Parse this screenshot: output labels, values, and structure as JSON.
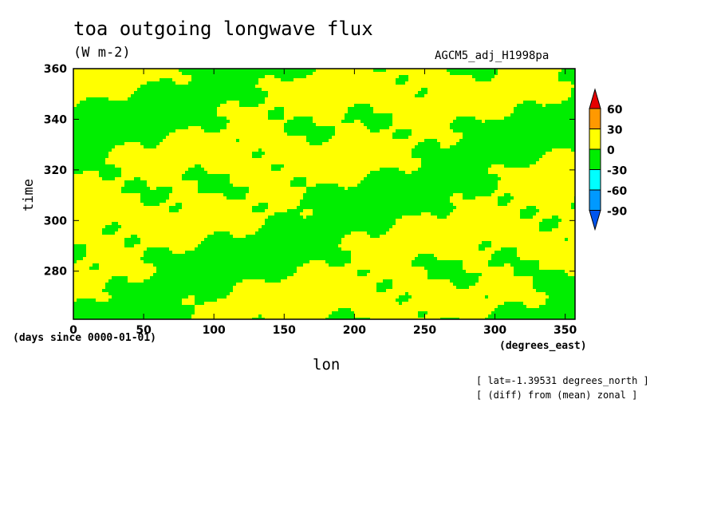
{
  "chart_data": {
    "type": "heatmap",
    "title": "toa outgoing longwave flux",
    "units": "(W m-2)",
    "model": "AGCM5_adj_H1998pa",
    "xlabel": "lon",
    "ylabel": "time",
    "x_units": "(degrees_east)",
    "y_units": "(days since 0000-01-01)",
    "xlim": [
      0,
      357
    ],
    "ylim": [
      261,
      360
    ],
    "x_ticks": [
      "0",
      "50",
      "100",
      "150",
      "200",
      "250",
      "300",
      "350"
    ],
    "y_ticks": [
      "280",
      "300",
      "320",
      "340",
      "360"
    ],
    "colorbar": {
      "levels": [
        "60",
        "30",
        "0",
        "-30",
        "-60",
        "-90"
      ],
      "colors": [
        "#e60000",
        "#ff9900",
        "#ffff00",
        "#00ee00",
        "#00ffff",
        "#0099ff",
        "#0055ee"
      ]
    },
    "dominant_colors": [
      "#ffff00",
      "#00ee00"
    ],
    "notes": [
      "[ lat=-1.39531 degrees_north ]",
      "[ (diff) from (mean) zonal ]"
    ]
  }
}
